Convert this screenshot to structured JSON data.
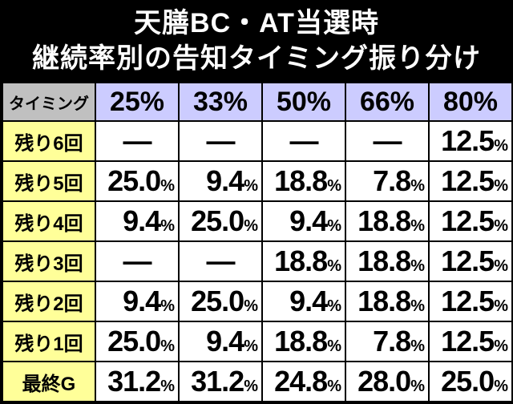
{
  "title": [
    "天膳BC・AT当選時",
    "継続率別の告知タイミング振り分け"
  ],
  "table": {
    "header": [
      "タイミング",
      "25%",
      "33%",
      "50%",
      "66%",
      "80%"
    ],
    "rows": [
      [
        "残り6回",
        "—",
        "—",
        "—",
        "—",
        "12.5%"
      ],
      [
        "残り5回",
        "25.0%",
        "9.4%",
        "18.8%",
        "7.8%",
        "12.5%"
      ],
      [
        "残り4回",
        "9.4%",
        "25.0%",
        "9.4%",
        "18.8%",
        "12.5%"
      ],
      [
        "残り3回",
        "—",
        "—",
        "18.8%",
        "18.8%",
        "12.5%"
      ],
      [
        "残り2回",
        "9.4%",
        "25.0%",
        "9.4%",
        "18.8%",
        "12.5%"
      ],
      [
        "残り1回",
        "25.0%",
        "9.4%",
        "18.8%",
        "7.8%",
        "12.5%"
      ],
      [
        "最終G",
        "31.2%",
        "31.2%",
        "24.8%",
        "28.0%",
        "25.0%"
      ]
    ]
  }
}
